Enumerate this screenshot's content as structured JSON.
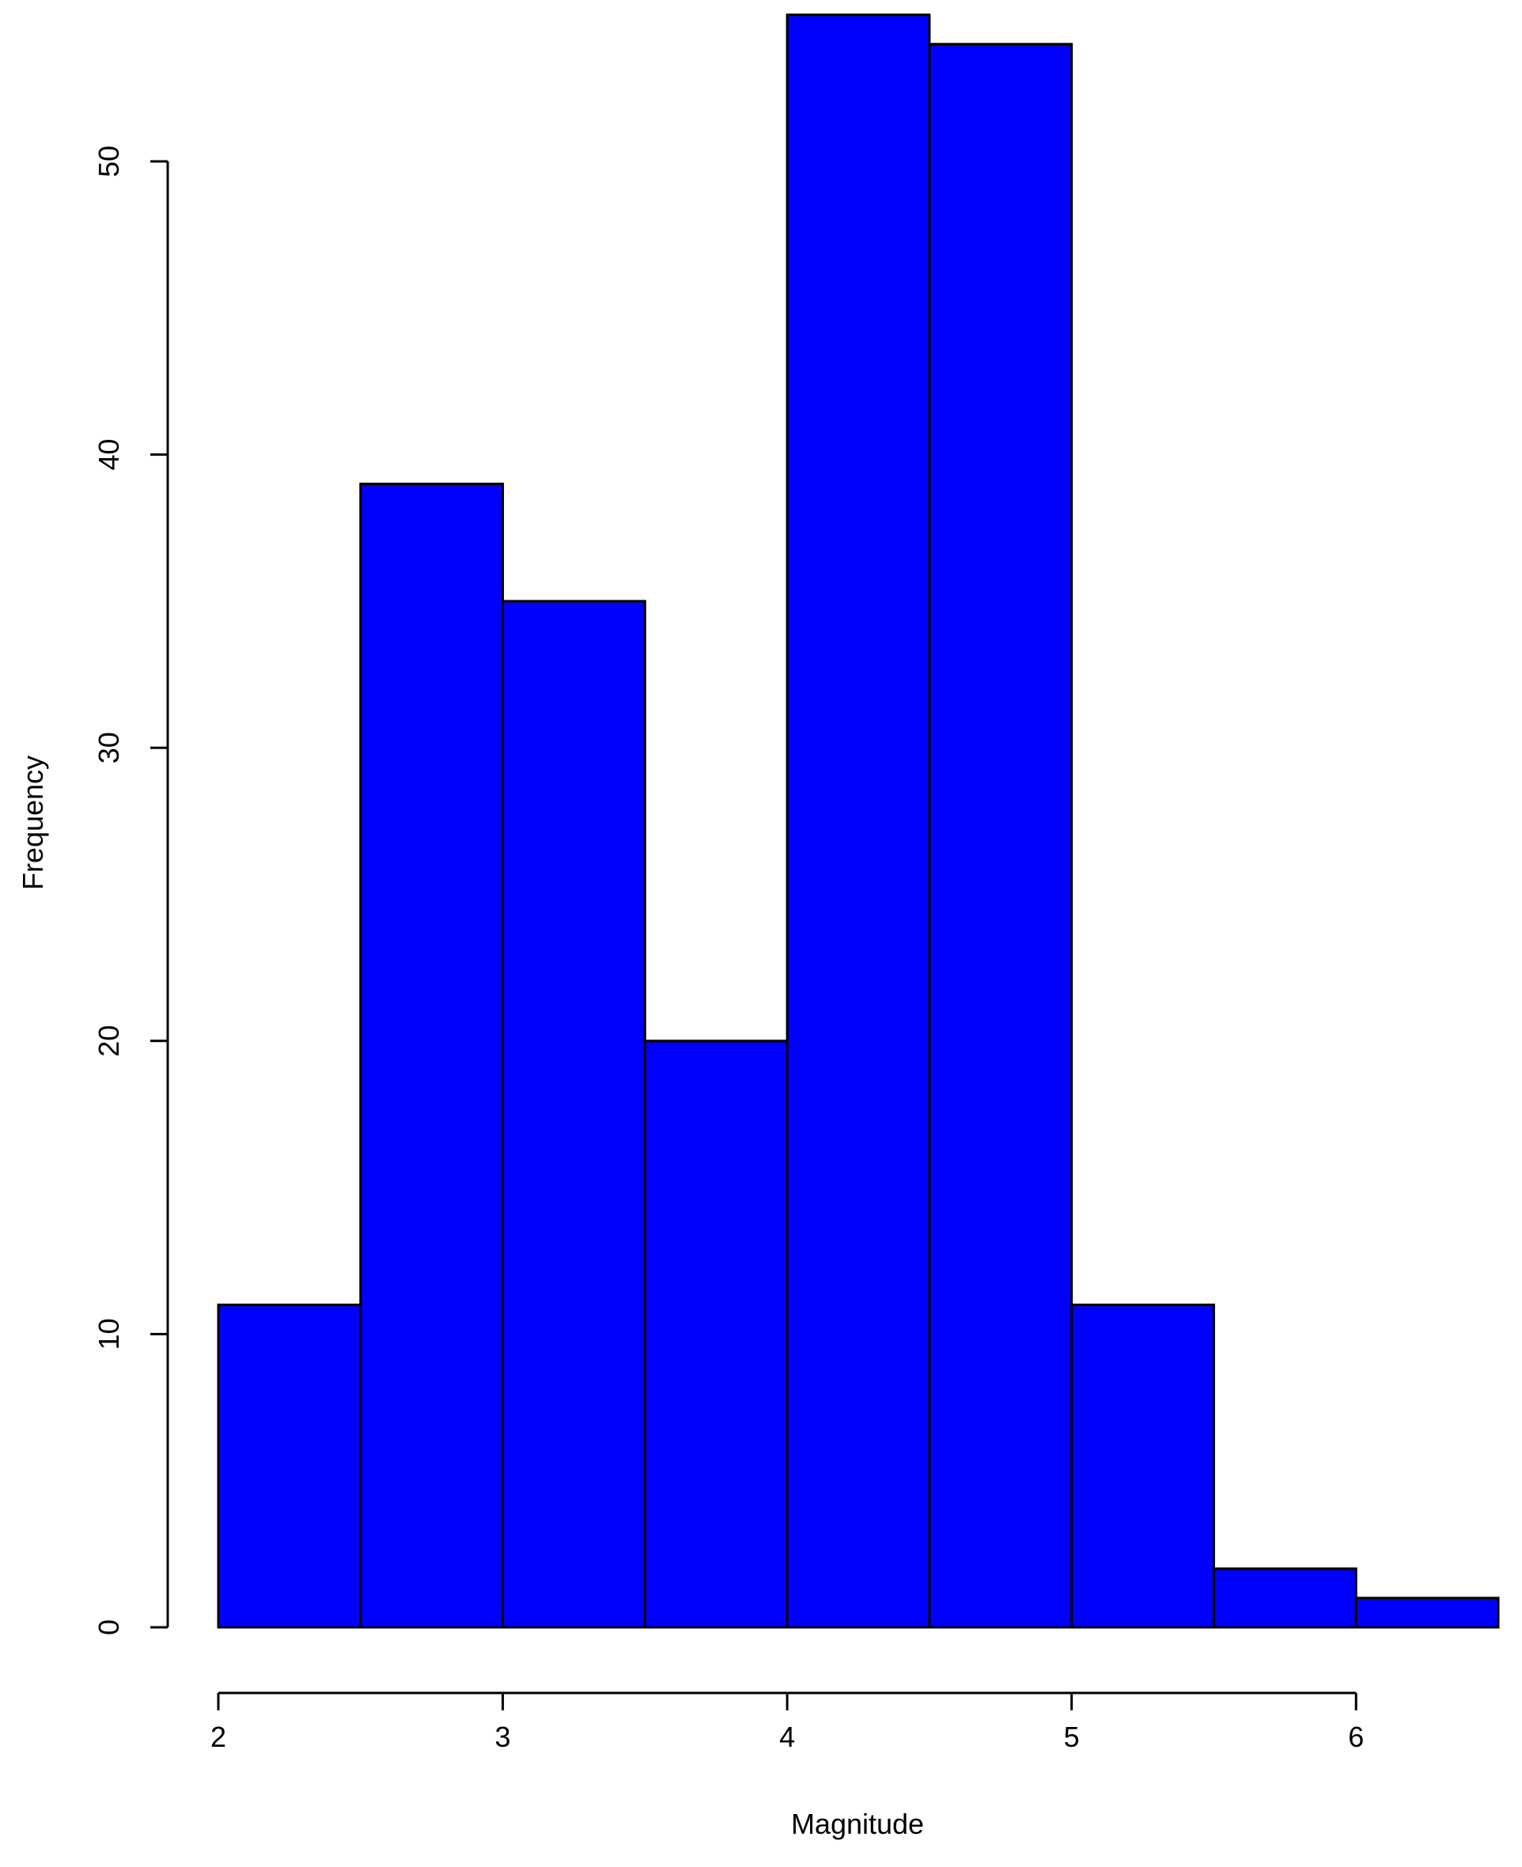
{
  "colors": {
    "bar_fill": "#0000ff",
    "bar_stroke": "#000000",
    "axis": "#000000",
    "background": "#ffffff"
  },
  "chart_data": {
    "type": "bar",
    "title": "",
    "xlabel": "Magnitude",
    "ylabel": "Frequency",
    "bin_edges": [
      2,
      2.5,
      3,
      3.5,
      4,
      4.5,
      5,
      5.5,
      6,
      6.5
    ],
    "values": [
      11,
      39,
      35,
      20,
      55,
      54,
      11,
      2,
      1
    ],
    "xlim": [
      2,
      6.5
    ],
    "ylim": [
      0,
      55
    ],
    "x_ticks": [
      2,
      3,
      4,
      5,
      6
    ],
    "x_tick_labels": [
      "2",
      "3",
      "4",
      "5",
      "6"
    ],
    "y_ticks": [
      0,
      10,
      20,
      30,
      40,
      50
    ],
    "y_tick_labels": [
      "0",
      "10",
      "20",
      "30",
      "40",
      "50"
    ],
    "grid": false,
    "legend": "none"
  }
}
